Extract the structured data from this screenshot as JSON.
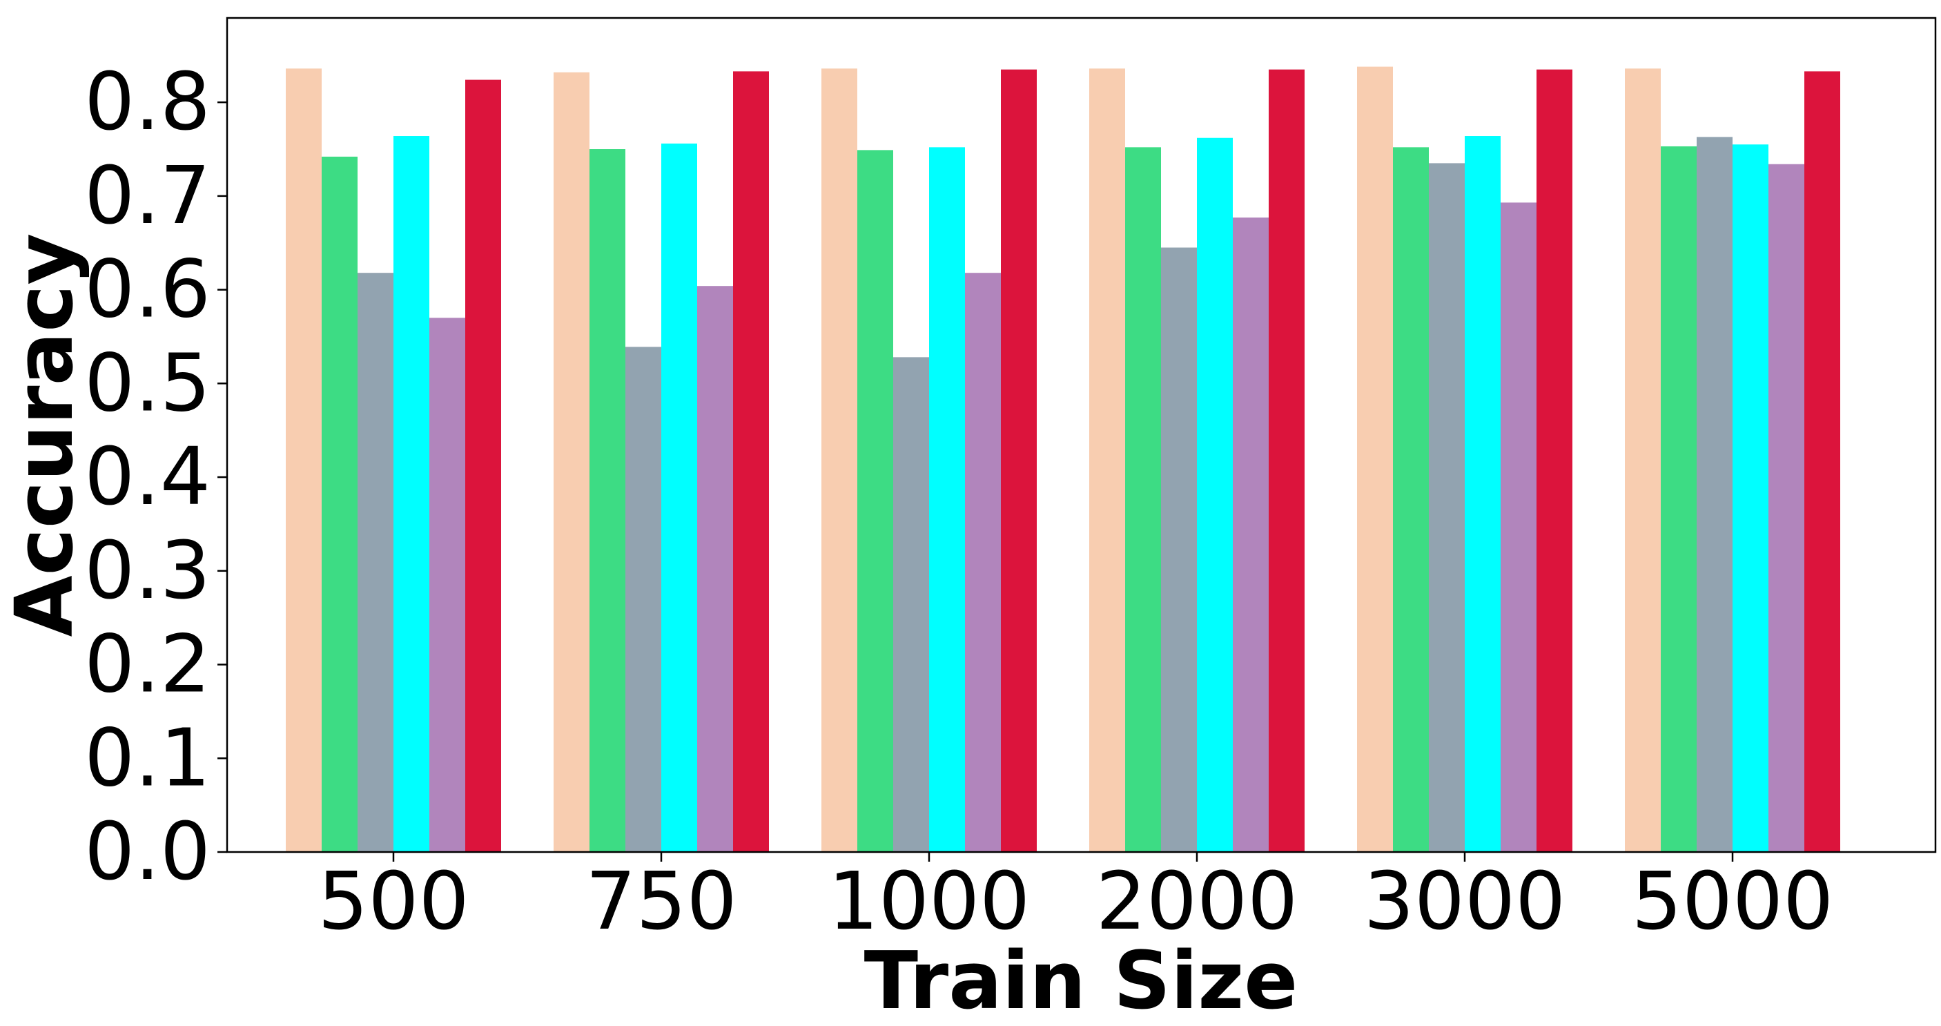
{
  "chart_data": {
    "type": "bar",
    "title": "",
    "xlabel": "Train Size",
    "ylabel": "Accuracy",
    "categories": [
      "500",
      "750",
      "1000",
      "2000",
      "3000",
      "5000"
    ],
    "ylim": [
      0,
      0.89
    ],
    "yticks": [
      "0.0",
      "0.1",
      "0.2",
      "0.3",
      "0.4",
      "0.5",
      "0.6",
      "0.7",
      "0.8"
    ],
    "grid": false,
    "legend": "none",
    "series": [
      {
        "color": "#f8cdb0",
        "values": [
          0.836,
          0.832,
          0.836,
          0.836,
          0.838,
          0.836
        ]
      },
      {
        "color": "#3ddc84",
        "values": [
          0.742,
          0.75,
          0.749,
          0.752,
          0.752,
          0.753
        ]
      },
      {
        "color": "#92a3b0",
        "values": [
          0.618,
          0.539,
          0.528,
          0.645,
          0.735,
          0.763
        ]
      },
      {
        "color": "#00ffff",
        "values": [
          0.764,
          0.756,
          0.752,
          0.762,
          0.764,
          0.755
        ]
      },
      {
        "color": "#b185bc",
        "values": [
          0.57,
          0.604,
          0.618,
          0.677,
          0.693,
          0.734
        ]
      },
      {
        "color": "#dc143c",
        "values": [
          0.824,
          0.833,
          0.835,
          0.835,
          0.835,
          0.833
        ]
      }
    ]
  }
}
